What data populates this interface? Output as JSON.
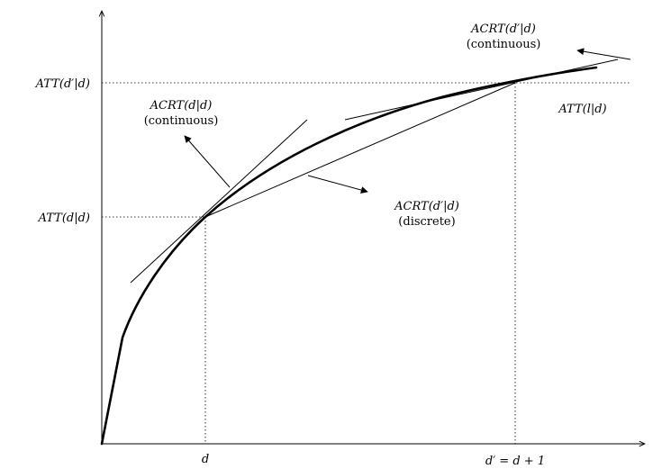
{
  "labels": {
    "y_att_dprime": "ATT(d′|d)",
    "y_att_d": "ATT(d|d)",
    "x_d": "d",
    "x_dprime": "d′ = d + 1",
    "curve": "ATT(l|d)",
    "acrt_dd_line1": "ACRT(d|d)",
    "acrt_dd_line2": "(continuous)",
    "acrt_dprime_cont_line1": "ACRT(d′|d)",
    "acrt_dprime_cont_line2": "(continuous)",
    "acrt_dprime_disc_line1": "ACRT(d′|d)",
    "acrt_dprime_disc_line2": "(discrete)"
  }
}
